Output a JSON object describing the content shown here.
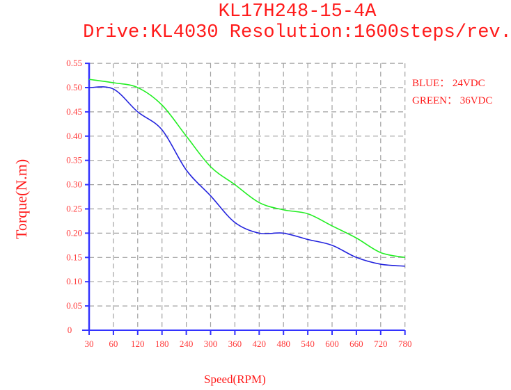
{
  "header": {
    "title": "KL17H248-15-4A",
    "subtitle": "Drive:KL4030 Resolution:1600steps/rev."
  },
  "legend": {
    "blue": "BLUE： 24VDC",
    "green": "GREEN： 36VDC"
  },
  "axes": {
    "xlabel": "Speed(RPM)",
    "ylabel": "Torque(N.m)"
  },
  "colors": {
    "text": "#ff1a1a",
    "axis": "#3333ff",
    "grid": "#a0a0a0",
    "blue_series": "#2222dd",
    "green_series": "#22ee22"
  },
  "chart_data": {
    "type": "line",
    "title": "KL17H248-15-4A",
    "subtitle": "Drive:KL4030 Resolution:1600steps/rev.",
    "xlabel": "Speed(RPM)",
    "ylabel": "Torque(N.m)",
    "x_tick_labels": [
      "30",
      "60",
      "120",
      "180",
      "240",
      "300",
      "360",
      "420",
      "480",
      "540",
      "600",
      "660",
      "720",
      "780"
    ],
    "y_tick_labels": [
      "0",
      "0.05",
      "0.10",
      "0.15",
      "0.20",
      "0.25",
      "0.30",
      "0.35",
      "0.40",
      "0.45",
      "0.50",
      "0.55"
    ],
    "ylim": [
      0,
      0.55
    ],
    "grid": true,
    "legend_position": "top-right (outside plot)",
    "x": [
      30,
      60,
      120,
      180,
      240,
      300,
      360,
      420,
      480,
      540,
      600,
      660,
      720,
      780
    ],
    "series": [
      {
        "name": "BLUE: 24VDC",
        "color": "blue",
        "values": [
          0.5,
          0.497,
          0.45,
          0.413,
          0.33,
          0.277,
          0.222,
          0.2,
          0.2,
          0.187,
          0.175,
          0.15,
          0.136,
          0.132
        ]
      },
      {
        "name": "GREEN: 36VDC",
        "color": "green",
        "values": [
          0.517,
          0.51,
          0.5,
          0.464,
          0.4,
          0.337,
          0.3,
          0.263,
          0.248,
          0.24,
          0.215,
          0.19,
          0.16,
          0.15
        ]
      }
    ]
  }
}
